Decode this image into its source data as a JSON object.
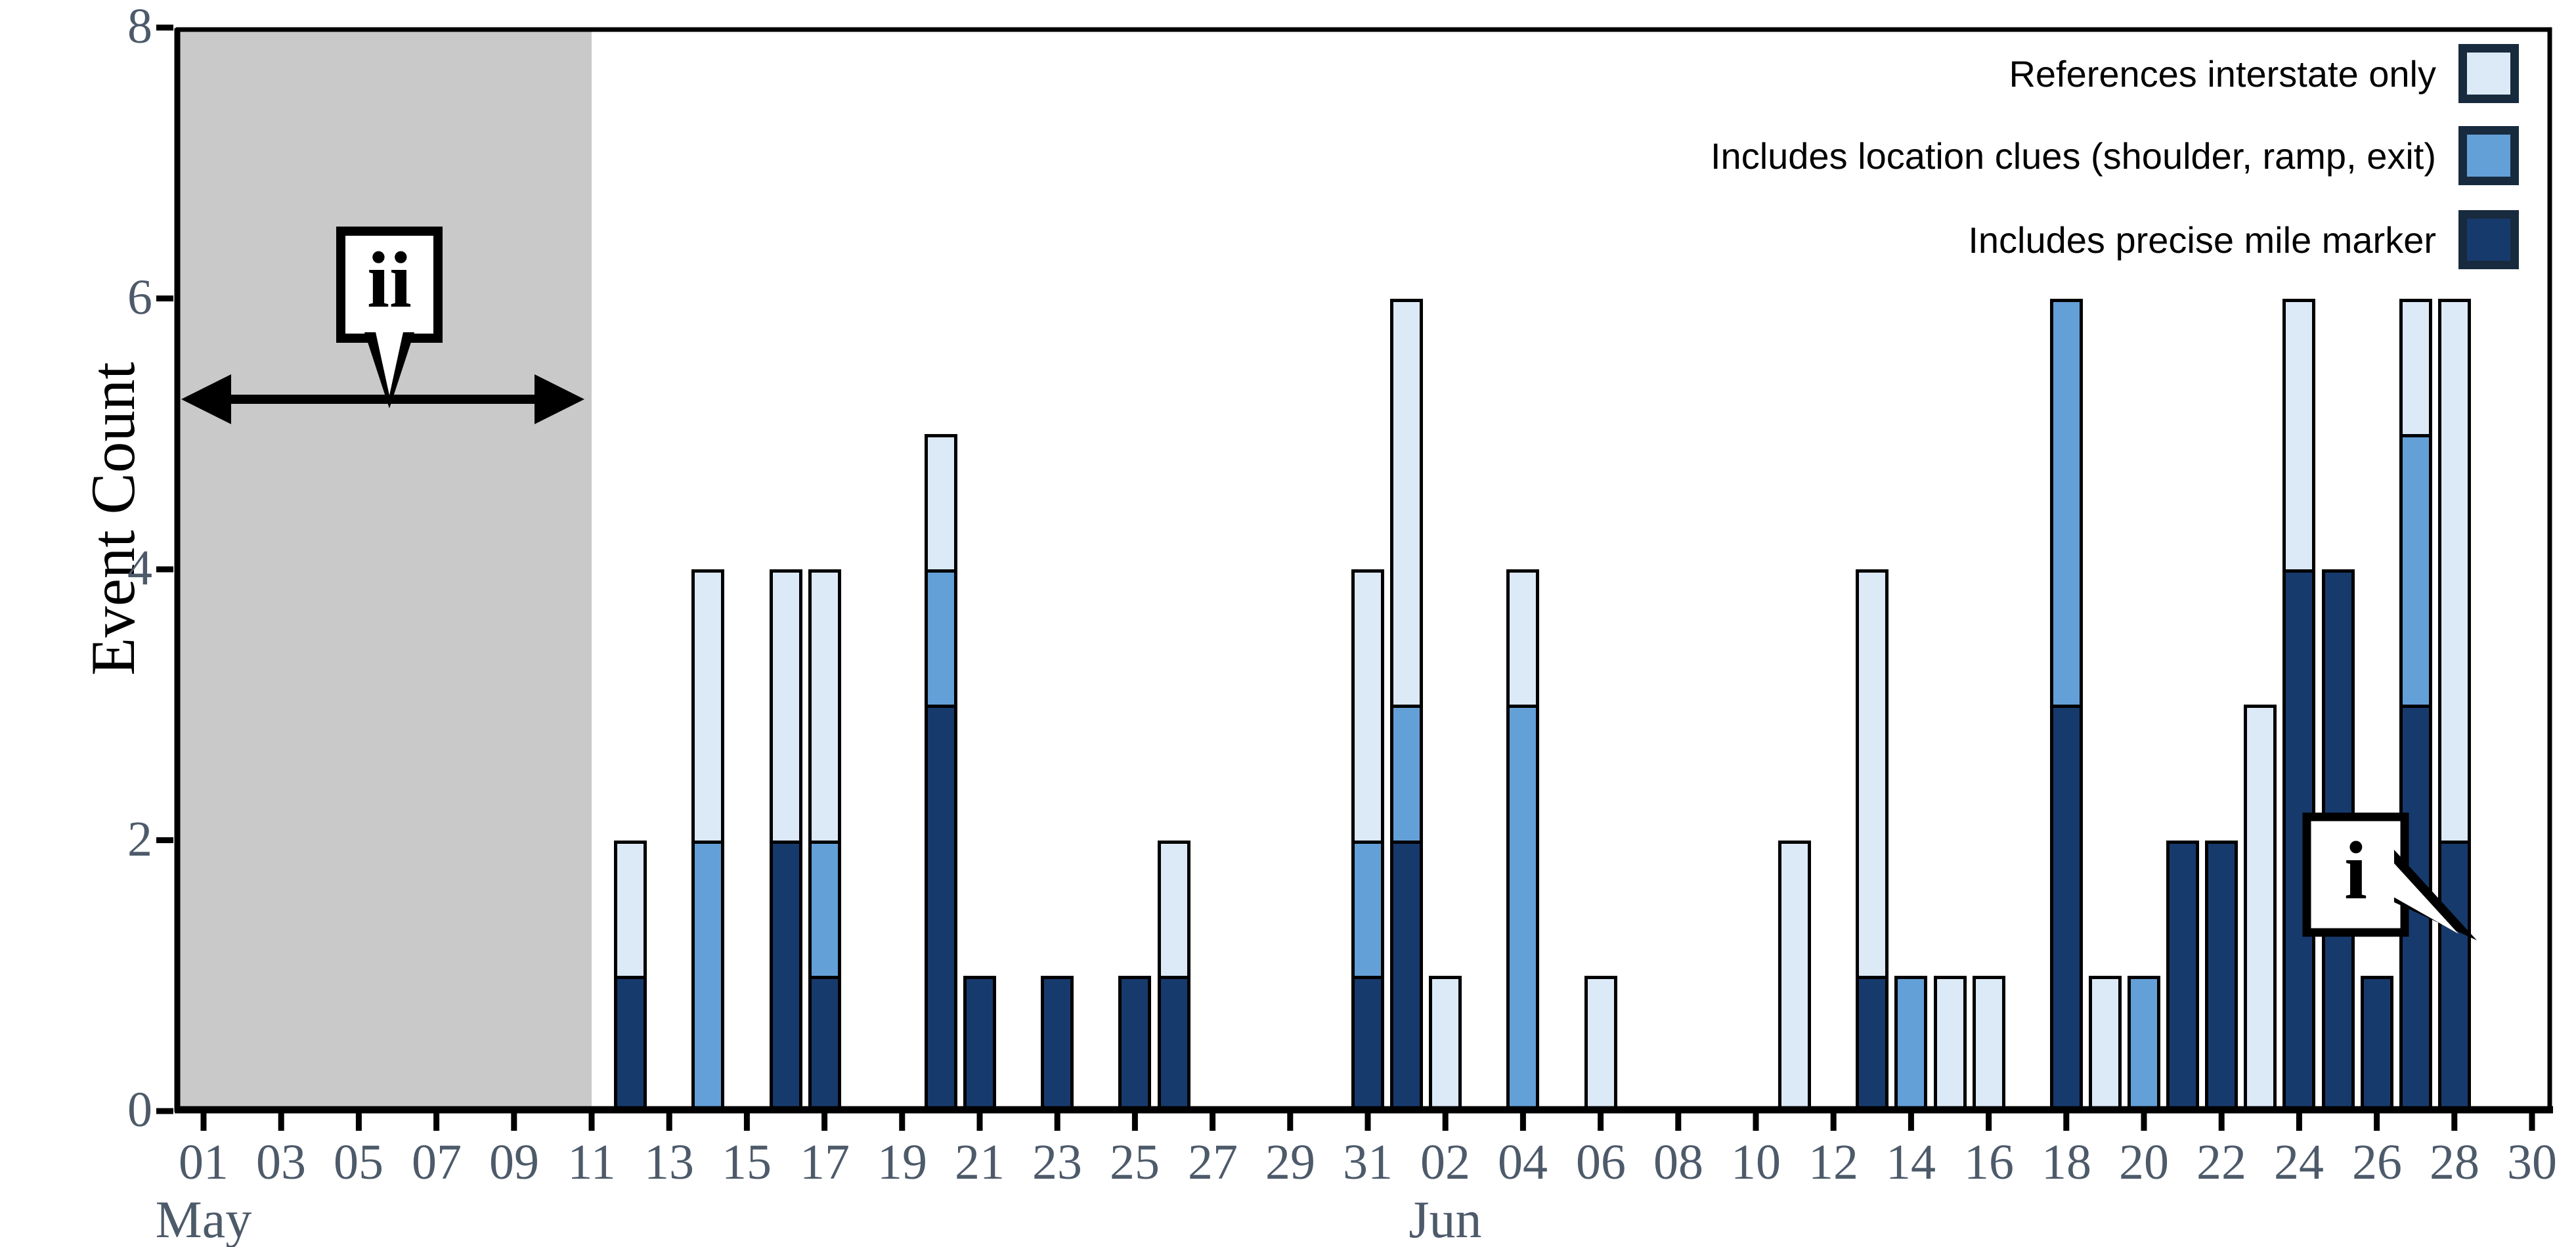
{
  "chart_data": {
    "type": "bar",
    "stacked": true,
    "title": "",
    "xlabel": "",
    "ylabel": "Event Count",
    "ylim": [
      0,
      8
    ],
    "yticks": [
      0,
      2,
      4,
      6,
      8
    ],
    "grid": false,
    "legend_position": "top-right",
    "series_meta": {
      "stack_order": [
        "mile_marker",
        "location_clues",
        "interstate_only"
      ],
      "colors": {
        "interstate_only": "#dce9f7",
        "location_clues": "#64a0d8",
        "mile_marker": "#173a6d"
      },
      "swatch_border": "#182b3e"
    },
    "legend": [
      {
        "key": "interstate_only",
        "label": "References interstate only"
      },
      {
        "key": "location_clues",
        "label": "Includes location clues (shoulder, ramp, exit)"
      },
      {
        "key": "mile_marker",
        "label": "Includes precise mile marker"
      }
    ],
    "x_axis": {
      "month_labels": [
        {
          "label": "May",
          "day": 0
        },
        {
          "label": "Jun",
          "day": 32
        }
      ],
      "ticks": [
        {
          "label": "01",
          "day": 0
        },
        {
          "label": "03",
          "day": 2
        },
        {
          "label": "05",
          "day": 4
        },
        {
          "label": "07",
          "day": 6
        },
        {
          "label": "09",
          "day": 8
        },
        {
          "label": "11",
          "day": 10
        },
        {
          "label": "13",
          "day": 12
        },
        {
          "label": "15",
          "day": 14
        },
        {
          "label": "17",
          "day": 16
        },
        {
          "label": "19",
          "day": 18
        },
        {
          "label": "21",
          "day": 20
        },
        {
          "label": "23",
          "day": 22
        },
        {
          "label": "25",
          "day": 24
        },
        {
          "label": "27",
          "day": 26
        },
        {
          "label": "29",
          "day": 28
        },
        {
          "label": "31",
          "day": 30
        },
        {
          "label": "02",
          "day": 32
        },
        {
          "label": "04",
          "day": 34
        },
        {
          "label": "06",
          "day": 36
        },
        {
          "label": "08",
          "day": 38
        },
        {
          "label": "10",
          "day": 40
        },
        {
          "label": "12",
          "day": 42
        },
        {
          "label": "14",
          "day": 44
        },
        {
          "label": "16",
          "day": 46
        },
        {
          "label": "18",
          "day": 48
        },
        {
          "label": "20",
          "day": 50
        },
        {
          "label": "22",
          "day": 52
        },
        {
          "label": "24",
          "day": 54
        },
        {
          "label": "26",
          "day": 56
        },
        {
          "label": "28",
          "day": 58
        },
        {
          "label": "30",
          "day": 60
        }
      ]
    },
    "bars": [
      {
        "date": "May 12",
        "day": 11,
        "mile_marker": 1,
        "location_clues": 0,
        "interstate_only": 1
      },
      {
        "date": "May 14",
        "day": 13,
        "mile_marker": 0,
        "location_clues": 2,
        "interstate_only": 2
      },
      {
        "date": "May 16",
        "day": 15,
        "mile_marker": 2,
        "location_clues": 0,
        "interstate_only": 2
      },
      {
        "date": "May 17",
        "day": 16,
        "mile_marker": 1,
        "location_clues": 1,
        "interstate_only": 2
      },
      {
        "date": "May 20",
        "day": 19,
        "mile_marker": 3,
        "location_clues": 1,
        "interstate_only": 1
      },
      {
        "date": "May 21",
        "day": 20,
        "mile_marker": 1,
        "location_clues": 0,
        "interstate_only": 0
      },
      {
        "date": "May 23",
        "day": 22,
        "mile_marker": 1,
        "location_clues": 0,
        "interstate_only": 0
      },
      {
        "date": "May 25",
        "day": 24,
        "mile_marker": 1,
        "location_clues": 0,
        "interstate_only": 0
      },
      {
        "date": "May 26",
        "day": 25,
        "mile_marker": 1,
        "location_clues": 0,
        "interstate_only": 1
      },
      {
        "date": "May 31",
        "day": 30,
        "mile_marker": 1,
        "location_clues": 1,
        "interstate_only": 2
      },
      {
        "date": "Jun 01",
        "day": 31,
        "mile_marker": 2,
        "location_clues": 1,
        "interstate_only": 3
      },
      {
        "date": "Jun 02",
        "day": 32,
        "mile_marker": 0,
        "location_clues": 0,
        "interstate_only": 1
      },
      {
        "date": "Jun 04",
        "day": 34,
        "mile_marker": 0,
        "location_clues": 3,
        "interstate_only": 1
      },
      {
        "date": "Jun 06",
        "day": 36,
        "mile_marker": 0,
        "location_clues": 0,
        "interstate_only": 1
      },
      {
        "date": "Jun 11",
        "day": 41,
        "mile_marker": 0,
        "location_clues": 0,
        "interstate_only": 2
      },
      {
        "date": "Jun 13",
        "day": 43,
        "mile_marker": 1,
        "location_clues": 0,
        "interstate_only": 3
      },
      {
        "date": "Jun 14",
        "day": 44,
        "mile_marker": 0,
        "location_clues": 1,
        "interstate_only": 0
      },
      {
        "date": "Jun 15",
        "day": 45,
        "mile_marker": 0,
        "location_clues": 0,
        "interstate_only": 1
      },
      {
        "date": "Jun 16",
        "day": 46,
        "mile_marker": 0,
        "location_clues": 0,
        "interstate_only": 1
      },
      {
        "date": "Jun 18",
        "day": 48,
        "mile_marker": 3,
        "location_clues": 3,
        "interstate_only": 0
      },
      {
        "date": "Jun 19",
        "day": 49,
        "mile_marker": 0,
        "location_clues": 0,
        "interstate_only": 1
      },
      {
        "date": "Jun 20",
        "day": 50,
        "mile_marker": 0,
        "location_clues": 1,
        "interstate_only": 0
      },
      {
        "date": "Jun 21",
        "day": 51,
        "mile_marker": 2,
        "location_clues": 0,
        "interstate_only": 0
      },
      {
        "date": "Jun 22",
        "day": 52,
        "mile_marker": 2,
        "location_clues": 0,
        "interstate_only": 0
      },
      {
        "date": "Jun 23",
        "day": 53,
        "mile_marker": 0,
        "location_clues": 0,
        "interstate_only": 3
      },
      {
        "date": "Jun 24",
        "day": 54,
        "mile_marker": 4,
        "location_clues": 0,
        "interstate_only": 2
      },
      {
        "date": "Jun 25",
        "day": 55,
        "mile_marker": 4,
        "location_clues": 0,
        "interstate_only": 0
      },
      {
        "date": "Jun 26",
        "day": 56,
        "mile_marker": 1,
        "location_clues": 0,
        "interstate_only": 0
      },
      {
        "date": "Jun 27",
        "day": 57,
        "mile_marker": 3,
        "location_clues": 2,
        "interstate_only": 1
      },
      {
        "date": "Jun 28",
        "day": 58,
        "mile_marker": 2,
        "location_clues": 0,
        "interstate_only": 4
      }
    ],
    "annotations": {
      "shaded_region": {
        "start_day_label": "May 01",
        "end_day_label": "May 11",
        "end_day": 10,
        "color": "#c9c9c9"
      },
      "arrow": {
        "type": "double-headed-horizontal",
        "y_value": 5.25,
        "spans": "shaded region"
      },
      "callout_ii": {
        "text": "ii",
        "points_to": "double-headed arrow over shaded region"
      },
      "callout_i": {
        "text": "i",
        "points_to": "Jun 28 bar"
      }
    },
    "axis_label_color": "#4d5a6a"
  }
}
